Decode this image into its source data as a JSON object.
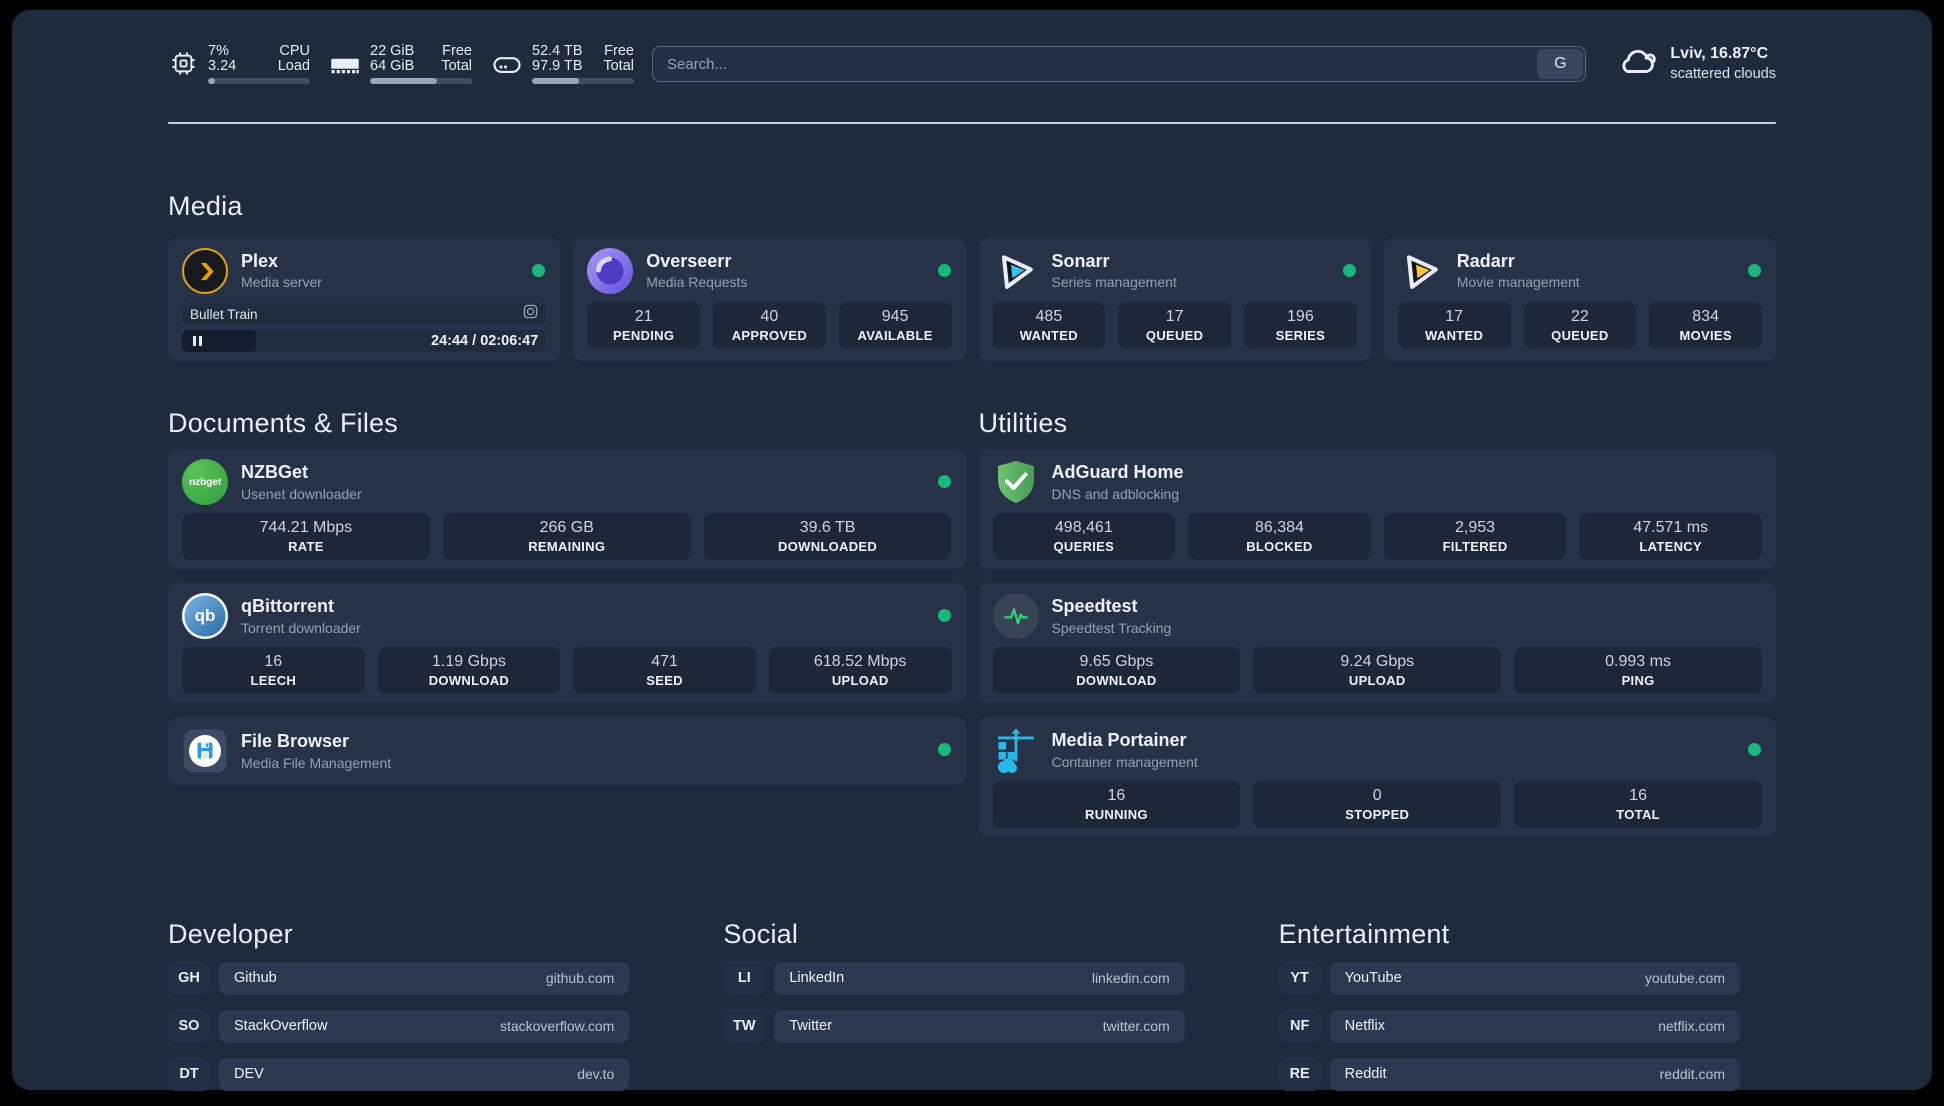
{
  "topbar": {
    "stats": [
      {
        "icon": "cpu-icon",
        "value1": "7%",
        "value2": "3.24",
        "label1": "CPU",
        "label2": "Load",
        "progress_pct": 7
      },
      {
        "icon": "ram-icon",
        "value1": "22 GiB",
        "value2": "64 GiB",
        "label1": "Free",
        "label2": "Total",
        "progress_pct": 66
      },
      {
        "icon": "disk-icon",
        "value1": "52.4 TB",
        "value2": "97.9 TB",
        "label1": "Free",
        "label2": "Total",
        "progress_pct": 46
      }
    ],
    "search": {
      "placeholder": "Search...",
      "button_label": "G"
    },
    "weather": {
      "icon": "cloud-icon",
      "location": "Lviv, 16.87°C",
      "condition": "scattered clouds"
    }
  },
  "media": {
    "title": "Media",
    "cards": [
      {
        "name": "Plex",
        "subtitle": "Media server",
        "icon": "plex-icon",
        "online": true,
        "stream": {
          "title": "Bullet Train",
          "time": "24:44 / 02:06:47"
        }
      },
      {
        "name": "Overseerr",
        "subtitle": "Media Requests",
        "icon": "overseerr-icon",
        "online": true,
        "stats": [
          {
            "value": "21",
            "label": "PENDING"
          },
          {
            "value": "40",
            "label": "APPROVED"
          },
          {
            "value": "945",
            "label": "AVAILABLE"
          }
        ]
      },
      {
        "name": "Sonarr",
        "subtitle": "Series management",
        "icon": "sonarr-icon",
        "online": true,
        "stats": [
          {
            "value": "485",
            "label": "WANTED"
          },
          {
            "value": "17",
            "label": "QUEUED"
          },
          {
            "value": "196",
            "label": "SERIES"
          }
        ]
      },
      {
        "name": "Radarr",
        "subtitle": "Movie management",
        "icon": "radarr-icon",
        "online": true,
        "stats": [
          {
            "value": "17",
            "label": "WANTED"
          },
          {
            "value": "22",
            "label": "QUEUED"
          },
          {
            "value": "834",
            "label": "MOVIES"
          }
        ]
      }
    ]
  },
  "documents": {
    "title": "Documents & Files",
    "cards": [
      {
        "name": "NZBGet",
        "subtitle": "Usenet downloader",
        "icon": "nzbget-icon",
        "icon_text": "nzbget",
        "online": true,
        "stats": [
          {
            "value": "744.21 Mbps",
            "label": "RATE"
          },
          {
            "value": "266 GB",
            "label": "REMAINING"
          },
          {
            "value": "39.6 TB",
            "label": "DOWNLOADED"
          }
        ]
      },
      {
        "name": "qBittorrent",
        "subtitle": "Torrent downloader",
        "icon": "qbittorrent-icon",
        "icon_text": "qb",
        "online": true,
        "stats": [
          {
            "value": "16",
            "label": "LEECH"
          },
          {
            "value": "1.19 Gbps",
            "label": "DOWNLOAD"
          },
          {
            "value": "471",
            "label": "SEED"
          },
          {
            "value": "618.52 Mbps",
            "label": "UPLOAD"
          }
        ]
      },
      {
        "name": "File Browser",
        "subtitle": "Media File Management",
        "icon": "filebrowser-icon",
        "online": true
      }
    ]
  },
  "utilities": {
    "title": "Utilities",
    "cards": [
      {
        "name": "AdGuard Home",
        "subtitle": "DNS and adblocking",
        "icon": "adguard-icon",
        "online": false,
        "stats": [
          {
            "value": "498,461",
            "label": "QUERIES"
          },
          {
            "value": "86,384",
            "label": "BLOCKED"
          },
          {
            "value": "2,953",
            "label": "FILTERED"
          },
          {
            "value": "47.571 ms",
            "label": "LATENCY"
          }
        ]
      },
      {
        "name": "Speedtest",
        "subtitle": "Speedtest Tracking",
        "icon": "speedtest-icon",
        "online": false,
        "stats": [
          {
            "value": "9.65 Gbps",
            "label": "DOWNLOAD"
          },
          {
            "value": "9.24 Gbps",
            "label": "UPLOAD"
          },
          {
            "value": "0.993 ms",
            "label": "PING"
          }
        ]
      },
      {
        "name": "Media Portainer",
        "subtitle": "Container management",
        "icon": "portainer-icon",
        "online": true,
        "stats": [
          {
            "value": "16",
            "label": "RUNNING"
          },
          {
            "value": "0",
            "label": "STOPPED"
          },
          {
            "value": "16",
            "label": "TOTAL"
          }
        ]
      }
    ]
  },
  "links": {
    "developer": {
      "title": "Developer",
      "items": [
        {
          "tag": "GH",
          "name": "Github",
          "url": "github.com"
        },
        {
          "tag": "SO",
          "name": "StackOverflow",
          "url": "stackoverflow.com"
        },
        {
          "tag": "DT",
          "name": "DEV",
          "url": "dev.to"
        }
      ]
    },
    "social": {
      "title": "Social",
      "items": [
        {
          "tag": "LI",
          "name": "LinkedIn",
          "url": "linkedin.com"
        },
        {
          "tag": "TW",
          "name": "Twitter",
          "url": "twitter.com"
        }
      ]
    },
    "entertainment": {
      "title": "Entertainment",
      "items": [
        {
          "tag": "YT",
          "name": "YouTube",
          "url": "youtube.com"
        },
        {
          "tag": "NF",
          "name": "Netflix",
          "url": "netflix.com"
        },
        {
          "tag": "RE",
          "name": "Reddit",
          "url": "reddit.com"
        }
      ]
    }
  },
  "colors": {
    "online_dot": "#17b87a",
    "accent_blue": "#28b9eb",
    "plex_gold": "#e5a00d",
    "page_bg": "#1f2a3c",
    "card_bg": "#273248"
  }
}
